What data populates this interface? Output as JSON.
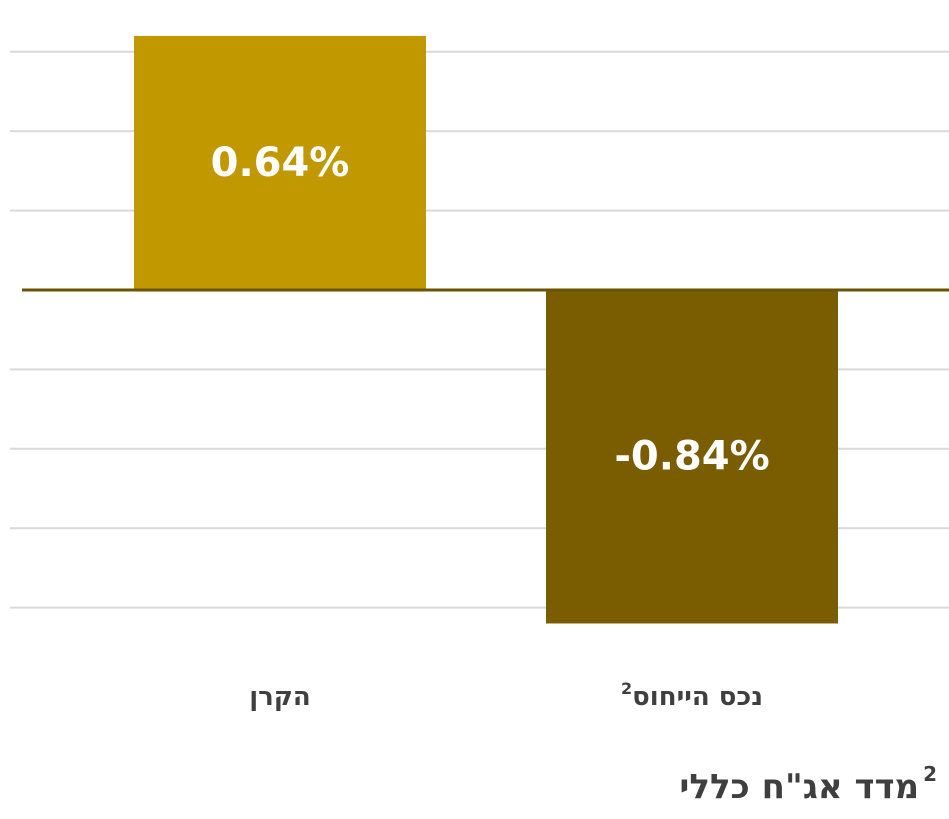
{
  "chart_data": {
    "type": "bar",
    "categories": [
      "הקרן",
      "נכס הייחוס"
    ],
    "category_superscripts": [
      "",
      "2"
    ],
    "values": [
      0.64,
      -0.84
    ],
    "data_labels": [
      "0.64%",
      "-0.84%"
    ],
    "ylim": [
      -0.9,
      0.7
    ],
    "grid": true,
    "unit": "%"
  },
  "footnote": {
    "superscript": "2",
    "text": "מדד אג\"ח כללי"
  },
  "colors": {
    "positive_bar": "#C19800",
    "negative_bar": "#7A5D00",
    "baseline": "#6B5300",
    "gridline": "#D9D9D9",
    "label_text": "#3F3F3F"
  }
}
